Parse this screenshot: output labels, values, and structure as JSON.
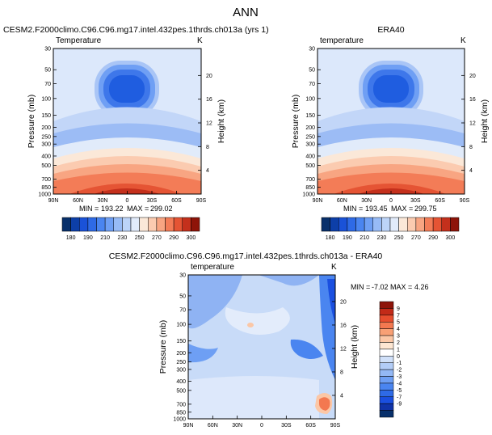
{
  "figure": {
    "title": "ANN"
  },
  "colors": {
    "temperature_palette": [
      "#08306b",
      "#0d3fa8",
      "#1a52d8",
      "#2e6ae6",
      "#4a85f0",
      "#6e9ff4",
      "#97bbf6",
      "#bcd4f8",
      "#e1ebfa",
      "#fbe8d8",
      "#fbcbb0",
      "#f8a582",
      "#f37c57",
      "#e55434",
      "#c4301c",
      "#8e1409"
    ],
    "difference_palette": [
      "#08306b",
      "#1033a8",
      "#1a4fe0",
      "#2e6ae6",
      "#4a85f0",
      "#6e9ff4",
      "#93b8f5",
      "#b3cdf7",
      "#d0e0f9",
      "#ffffff",
      "#fde6d2",
      "#fbc7a6",
      "#f8a075",
      "#f37850",
      "#e64d2e",
      "#c22a18",
      "#8e1409"
    ]
  },
  "chart_data": [
    {
      "type": "contour",
      "id": "model_panel",
      "title": "CESM2.F2000climo.C96.C96.mg17.intel.432pes.1thrds.ch013a (yrs 1)",
      "field_label": "Temperature",
      "units": "K",
      "ylabel": "Pressure (mb)",
      "y2label": "Height (km)",
      "xticks": [
        "90N",
        "60N",
        "30N",
        "0",
        "30S",
        "60S",
        "90S"
      ],
      "yticks": [
        "30",
        "50",
        "70",
        "100",
        "150",
        "200",
        "250",
        "300",
        "400",
        "500",
        "700",
        "850",
        "1000"
      ],
      "y2ticks": [
        "20",
        "16",
        "12",
        "8",
        "4"
      ],
      "stats": {
        "min_label": "MIN =",
        "min": "193.22",
        "max_label": "MAX =",
        "max": "299.02"
      }
    },
    {
      "type": "contour",
      "id": "obs_panel",
      "title": "ERA40",
      "field_label": "temperature",
      "units": "K",
      "ylabel": "Pressure (mb)",
      "y2label": "Height (km)",
      "xticks": [
        "90N",
        "60N",
        "30N",
        "0",
        "30S",
        "60S",
        "90S"
      ],
      "yticks": [
        "30",
        "50",
        "70",
        "100",
        "150",
        "200",
        "250",
        "300",
        "400",
        "500",
        "700",
        "850",
        "1000"
      ],
      "y2ticks": [
        "20",
        "16",
        "12",
        "8",
        "4"
      ],
      "stats": {
        "min_label": "MIN =",
        "min": "193.45",
        "max_label": "MAX =",
        "max": "299.75"
      }
    },
    {
      "type": "colorbar",
      "id": "temperature_colorbar",
      "orientation": "horizontal",
      "labels": [
        "180",
        "190",
        "210",
        "230",
        "250",
        "270",
        "290",
        "300"
      ]
    },
    {
      "type": "contour",
      "id": "diff_panel",
      "title": "CESM2.F2000climo.C96.C96.mg17.intel.432pes.1thrds.ch013a - ERA40",
      "field_label": "temperature",
      "units": "K",
      "ylabel": "Pressure (mb)",
      "y2label": "Height (km)",
      "xticks": [
        "90N",
        "60N",
        "30N",
        "0",
        "30S",
        "60S",
        "90S"
      ],
      "yticks": [
        "30",
        "50",
        "70",
        "100",
        "150",
        "200",
        "250",
        "300",
        "400",
        "500",
        "700",
        "850",
        "1000"
      ],
      "y2ticks": [
        "20",
        "16",
        "12",
        "8",
        "4"
      ],
      "stats": {
        "min_label": "MIN =",
        "min": "-7.02",
        "max_label": "MAX =",
        "max": "4.26"
      }
    },
    {
      "type": "colorbar",
      "id": "difference_colorbar",
      "orientation": "vertical",
      "labels": [
        "9",
        "7",
        "5",
        "4",
        "3",
        "2",
        "1",
        "0",
        "-1",
        "-2",
        "-3",
        "-4",
        "-5",
        "-7",
        "-9"
      ]
    }
  ]
}
